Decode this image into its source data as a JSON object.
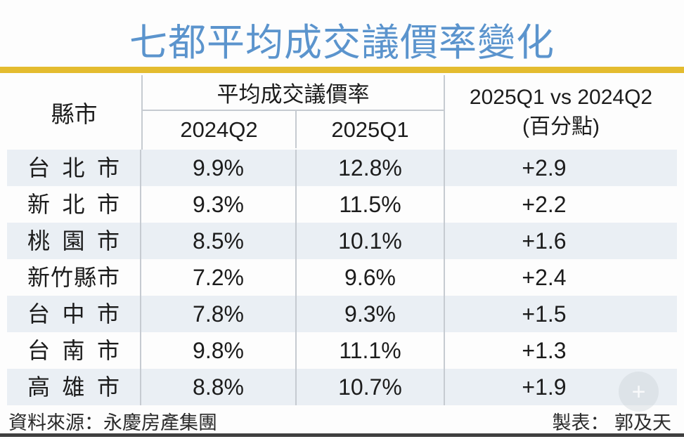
{
  "title": "七都平均成交議價率變化",
  "table": {
    "col_city": "縣市",
    "group_header": "平均成交議價率",
    "col_2024q2": "2024Q2",
    "col_2025q1": "2025Q1",
    "col_diff_line1": "2025Q1 vs 2024Q2",
    "col_diff_line2": "(百分點)",
    "rows": [
      {
        "city": "台北市",
        "q2024": "9.9%",
        "q2025": "12.8%",
        "diff": "+2.9"
      },
      {
        "city": "新北市",
        "q2024": "9.3%",
        "q2025": "11.5%",
        "diff": "+2.2"
      },
      {
        "city": "桃園市",
        "q2024": "8.5%",
        "q2025": "10.1%",
        "diff": "+1.6"
      },
      {
        "city": "新竹縣市",
        "q2024": "7.2%",
        "q2025": "9.6%",
        "diff": "+2.4"
      },
      {
        "city": "台中市",
        "q2024": "7.8%",
        "q2025": "9.3%",
        "diff": "+1.5"
      },
      {
        "city": "台南市",
        "q2024": "9.8%",
        "q2025": "11.1%",
        "diff": "+1.3"
      },
      {
        "city": "高雄市",
        "q2024": "8.8%",
        "q2025": "10.7%",
        "diff": "+1.9"
      }
    ]
  },
  "footer": {
    "source": "資料來源：永慶房產集團",
    "credit": "製表： 郭及天"
  },
  "watermark": {
    "symbol": "+"
  },
  "colors": {
    "title_blue": "#5B94CD",
    "gold": "#E4BC2F",
    "stripe": "#EAEFF4",
    "border": "#C6CBD1",
    "bottom_bar": "#3F3F3F"
  },
  "chart_data": {
    "type": "table",
    "title": "七都平均成交議價率變化",
    "categories": [
      "台北市",
      "新北市",
      "桃園市",
      "新竹縣市",
      "台中市",
      "台南市",
      "高雄市"
    ],
    "series": [
      {
        "name": "2024Q2 平均成交議價率 (%)",
        "values": [
          9.9,
          9.3,
          8.5,
          7.2,
          7.8,
          9.8,
          8.8
        ]
      },
      {
        "name": "2025Q1 平均成交議價率 (%)",
        "values": [
          12.8,
          11.5,
          10.1,
          9.6,
          9.3,
          11.1,
          10.7
        ]
      },
      {
        "name": "2025Q1 vs 2024Q2 (百分點)",
        "values": [
          2.9,
          2.2,
          1.6,
          2.4,
          1.5,
          1.3,
          1.9
        ]
      }
    ],
    "source": "永慶房產集團",
    "credit": "郭及天"
  }
}
